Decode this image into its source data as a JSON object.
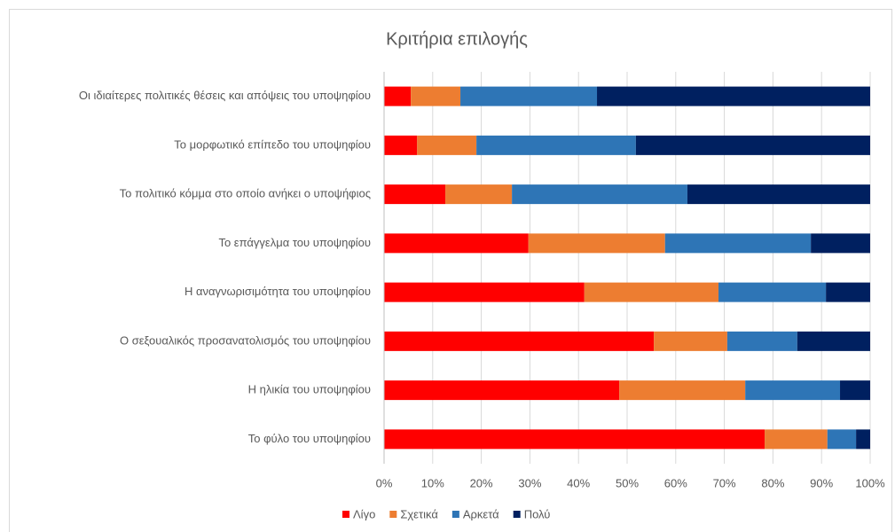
{
  "chart_data": {
    "type": "stacked_bar_horizontal_100",
    "title": "Κριτήρια επιλογής",
    "categories": [
      "Οι ιδιαίτερες πολιτικές θέσεις και απόψεις του υποψηφίου",
      "Το μορφωτικό επίπεδο του υποψηφίου",
      "Το πολιτικό κόμμα στο οποίο ανήκει ο υποψήφιος",
      "Το επάγγελμα του υποψηφίου",
      "Η αναγνωρισιμότητα του υποψηφίου",
      "Ο σεξουαλικός προσανατολισμός του υποψηφίου",
      "Η ηλικία του υποψηφίου",
      "Το φύλο του υποψηφίου"
    ],
    "series": [
      {
        "name": "Λίγο",
        "color": "#ff0000",
        "values": [
          5.5,
          6.8,
          12.6,
          29.7,
          41.2,
          55.5,
          48.4,
          78.3
        ]
      },
      {
        "name": "Σχετικά",
        "color": "#ed7d31",
        "values": [
          10.2,
          12.2,
          13.7,
          28.1,
          27.6,
          15.1,
          25.9,
          12.9
        ]
      },
      {
        "name": "Αρκετά",
        "color": "#2e75b6",
        "values": [
          28.1,
          32.8,
          36.1,
          30.0,
          22.1,
          14.4,
          19.5,
          5.9
        ]
      },
      {
        "name": "Πολύ",
        "color": "#002060",
        "values": [
          56.2,
          48.2,
          37.6,
          12.2,
          9.1,
          15.0,
          6.2,
          2.9
        ]
      }
    ],
    "xlim": [
      0,
      100
    ],
    "xticks": [
      {
        "value": 0,
        "label": "0%"
      },
      {
        "value": 10,
        "label": "10%"
      },
      {
        "value": 20,
        "label": "20%"
      },
      {
        "value": 30,
        "label": "30%"
      },
      {
        "value": 40,
        "label": "40%"
      },
      {
        "value": 50,
        "label": "50%"
      },
      {
        "value": 60,
        "label": "60%"
      },
      {
        "value": 70,
        "label": "70%"
      },
      {
        "value": 80,
        "label": "80%"
      },
      {
        "value": 90,
        "label": "90%"
      },
      {
        "value": 100,
        "label": "100%"
      }
    ],
    "grid": true,
    "legend": "bottom"
  }
}
